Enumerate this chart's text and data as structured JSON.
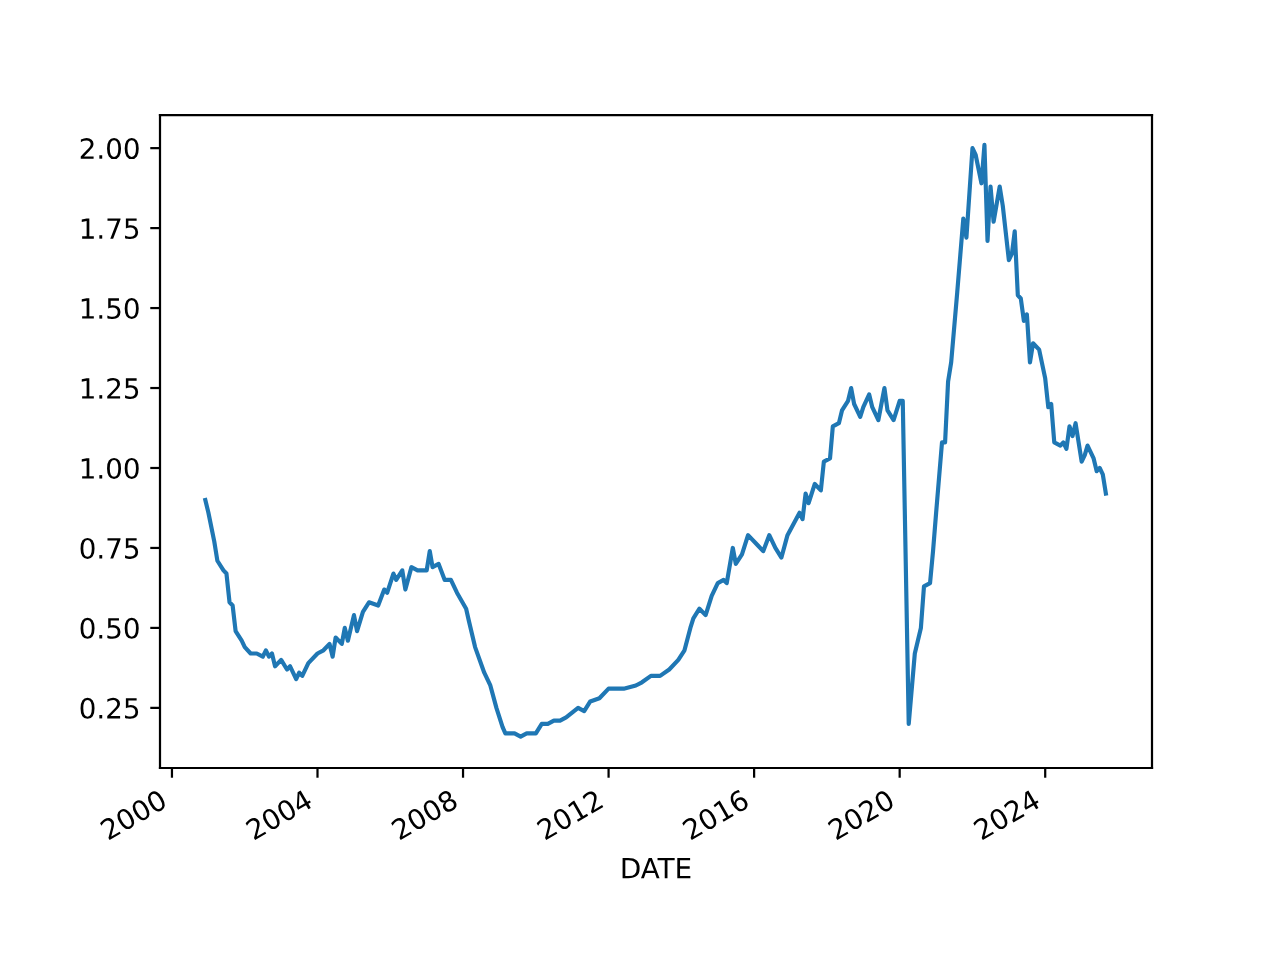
{
  "chart_data": {
    "type": "line",
    "xlabel": "DATE",
    "x": [
      "2000-12",
      "2001-01",
      "2001-03",
      "2001-04",
      "2001-06",
      "2001-07",
      "2001-08",
      "2001-09",
      "2001-10",
      "2001-12",
      "2002-01",
      "2002-03",
      "2002-05",
      "2002-07",
      "2002-08",
      "2002-09",
      "2002-10",
      "2002-11",
      "2003-01",
      "2003-03",
      "2003-04",
      "2003-06",
      "2003-07",
      "2003-08",
      "2003-10",
      "2004-01",
      "2004-03",
      "2004-05",
      "2004-06",
      "2004-07",
      "2004-09",
      "2004-10",
      "2004-11",
      "2005-01",
      "2005-02",
      "2005-04",
      "2005-06",
      "2005-09",
      "2005-11",
      "2005-12",
      "2006-02",
      "2006-03",
      "2006-05",
      "2006-06",
      "2006-08",
      "2006-10",
      "2007-01",
      "2007-02",
      "2007-03",
      "2007-05",
      "2007-07",
      "2007-09",
      "2007-11",
      "2008-02",
      "2008-03",
      "2008-05",
      "2008-08",
      "2008-10",
      "2008-12",
      "2009-02",
      "2009-03",
      "2009-06",
      "2009-08",
      "2009-10",
      "2010-01",
      "2010-03",
      "2010-05",
      "2010-07",
      "2010-09",
      "2010-11",
      "2011-03",
      "2011-05",
      "2011-07",
      "2011-10",
      "2012-01",
      "2012-03",
      "2012-06",
      "2012-10",
      "2012-12",
      "2013-03",
      "2013-06",
      "2013-09",
      "2013-12",
      "2014-02",
      "2014-04",
      "2014-05",
      "2014-07",
      "2014-09",
      "2014-11",
      "2015-01",
      "2015-03",
      "2015-04",
      "2015-06",
      "2015-07",
      "2015-09",
      "2015-11",
      "2016-02",
      "2016-04",
      "2016-06",
      "2016-08",
      "2016-10",
      "2016-12",
      "2017-04",
      "2017-05",
      "2017-06",
      "2017-07",
      "2017-09",
      "2017-11",
      "2017-12",
      "2018-02",
      "2018-03",
      "2018-05",
      "2018-06",
      "2018-08",
      "2018-09",
      "2018-10",
      "2018-12",
      "2019-01",
      "2019-03",
      "2019-04",
      "2019-06",
      "2019-08",
      "2019-09",
      "2019-11",
      "2020-01",
      "2020-02",
      "2020-04",
      "2020-06",
      "2020-08",
      "2020-09",
      "2020-11",
      "2020-12",
      "2021-01",
      "2021-03",
      "2021-04",
      "2021-05",
      "2021-06",
      "2021-08",
      "2021-10",
      "2021-11",
      "2022-01",
      "2022-02",
      "2022-04",
      "2022-05",
      "2022-06",
      "2022-07",
      "2022-08",
      "2022-10",
      "2022-11",
      "2023-01",
      "2023-02",
      "2023-03",
      "2023-04",
      "2023-05",
      "2023-06",
      "2023-07",
      "2023-08",
      "2023-09",
      "2023-11",
      "2024-01",
      "2024-02",
      "2024-03",
      "2024-04",
      "2024-06",
      "2024-07",
      "2024-08",
      "2024-09",
      "2024-10",
      "2024-11",
      "2025-01",
      "2025-02",
      "2025-03",
      "2025-05",
      "2025-06",
      "2025-07",
      "2025-08",
      "2025-09"
    ],
    "series": [
      {
        "color": "#1f77b4",
        "values": [
          0.9,
          0.86,
          0.77,
          0.71,
          0.68,
          0.67,
          0.58,
          0.57,
          0.49,
          0.46,
          0.44,
          0.42,
          0.42,
          0.41,
          0.43,
          0.41,
          0.42,
          0.38,
          0.4,
          0.37,
          0.38,
          0.34,
          0.36,
          0.35,
          0.39,
          0.42,
          0.43,
          0.45,
          0.41,
          0.47,
          0.45,
          0.5,
          0.46,
          0.54,
          0.49,
          0.55,
          0.58,
          0.57,
          0.62,
          0.61,
          0.67,
          0.65,
          0.68,
          0.62,
          0.69,
          0.68,
          0.68,
          0.74,
          0.69,
          0.7,
          0.65,
          0.65,
          0.61,
          0.56,
          0.52,
          0.44,
          0.36,
          0.32,
          0.25,
          0.19,
          0.17,
          0.17,
          0.16,
          0.17,
          0.17,
          0.2,
          0.2,
          0.21,
          0.21,
          0.22,
          0.25,
          0.24,
          0.27,
          0.28,
          0.31,
          0.31,
          0.31,
          0.32,
          0.33,
          0.35,
          0.35,
          0.37,
          0.4,
          0.43,
          0.5,
          0.53,
          0.56,
          0.54,
          0.6,
          0.64,
          0.65,
          0.64,
          0.75,
          0.7,
          0.73,
          0.79,
          0.76,
          0.74,
          0.79,
          0.75,
          0.72,
          0.79,
          0.86,
          0.84,
          0.92,
          0.89,
          0.95,
          0.93,
          1.02,
          1.03,
          1.13,
          1.14,
          1.18,
          1.21,
          1.25,
          1.2,
          1.16,
          1.19,
          1.23,
          1.19,
          1.15,
          1.25,
          1.18,
          1.15,
          1.21,
          1.21,
          0.2,
          0.42,
          0.5,
          0.63,
          0.64,
          0.74,
          0.86,
          1.08,
          1.08,
          1.27,
          1.33,
          1.55,
          1.78,
          1.72,
          2.0,
          1.98,
          1.89,
          2.01,
          1.71,
          1.88,
          1.77,
          1.88,
          1.82,
          1.65,
          1.67,
          1.74,
          1.54,
          1.53,
          1.46,
          1.48,
          1.33,
          1.39,
          1.37,
          1.28,
          1.19,
          1.2,
          1.08,
          1.07,
          1.08,
          1.06,
          1.13,
          1.1,
          1.14,
          1.02,
          1.04,
          1.07,
          1.03,
          0.99,
          1.0,
          0.98,
          0.92
        ]
      }
    ],
    "xlim": [
      "1999-09-03",
      "2026-12-08"
    ],
    "xticks": [
      "2000",
      "2004",
      "2008",
      "2012",
      "2016",
      "2020",
      "2024"
    ],
    "ylim": [
      0.062,
      2.103
    ],
    "yticks": [
      {
        "value": 0.25,
        "label": "0.25"
      },
      {
        "value": 0.5,
        "label": "0.50"
      },
      {
        "value": 0.75,
        "label": "0.75"
      },
      {
        "value": 1.0,
        "label": "1.00"
      },
      {
        "value": 1.25,
        "label": "1.25"
      },
      {
        "value": 1.5,
        "label": "1.50"
      },
      {
        "value": 1.75,
        "label": "1.75"
      },
      {
        "value": 2.0,
        "label": "2.00"
      }
    ],
    "grid": false
  }
}
